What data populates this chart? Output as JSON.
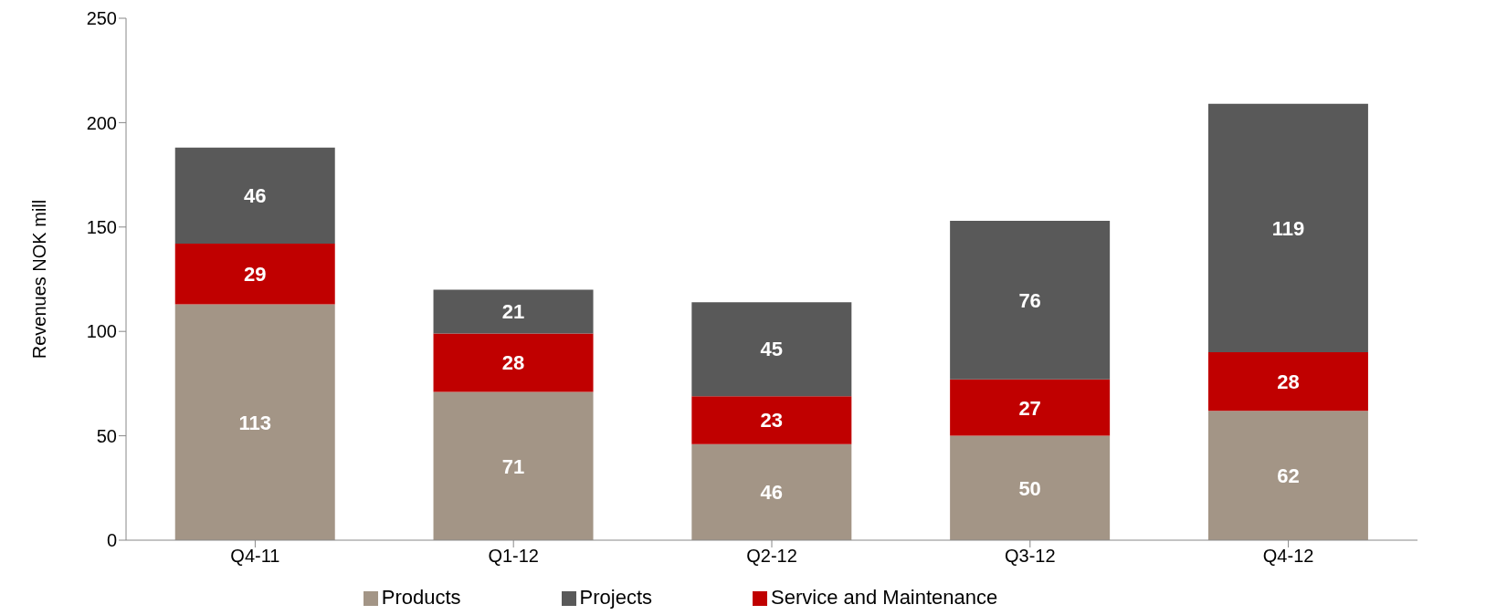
{
  "chart_data": {
    "type": "bar",
    "stacked": true,
    "ylabel": "Revenues NOK mill",
    "categories": [
      "Q4-11",
      "Q1-12",
      "Q2-12",
      "Q3-12",
      "Q4-12"
    ],
    "series": [
      {
        "name": "Products",
        "color": "#a39586",
        "values": [
          113,
          71,
          46,
          50,
          62
        ]
      },
      {
        "name": "Service and Maintenance",
        "color": "#c00000",
        "values": [
          29,
          28,
          23,
          27,
          28
        ]
      },
      {
        "name": "Projects",
        "color": "#595959",
        "values": [
          46,
          21,
          45,
          76,
          119
        ]
      }
    ],
    "ylim": [
      0,
      250
    ],
    "yticks": [
      0,
      50,
      100,
      150,
      200,
      250
    ],
    "grid": false,
    "legend": "bottom",
    "data_labels": true
  }
}
